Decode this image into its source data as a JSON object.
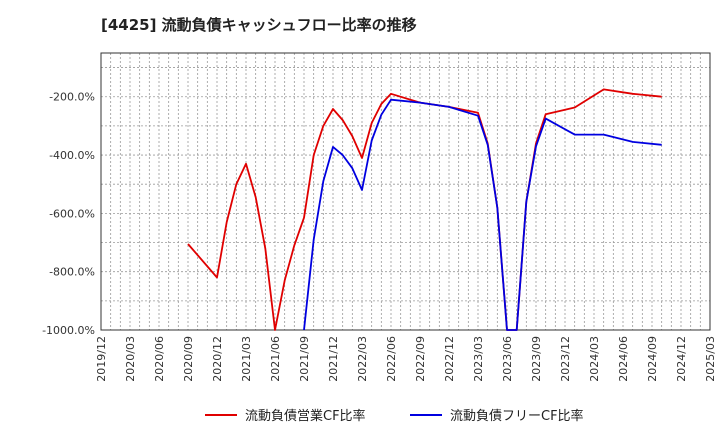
{
  "chart_data": {
    "type": "line",
    "title": "[4425]  流動負債キャッシュフロー比率の推移",
    "xlabel": "",
    "ylabel": "",
    "ylim": [
      -1000,
      -50
    ],
    "yticks": [
      -200,
      -400,
      -600,
      -800,
      -1000
    ],
    "ytick_labels": [
      "-200.0%",
      "-400.0%",
      "-600.0%",
      "-800.0%",
      "-1000.0%"
    ],
    "xtick_labels": [
      "2019/12",
      "2020/03",
      "2020/06",
      "2020/09",
      "2020/12",
      "2021/03",
      "2021/06",
      "2021/09",
      "2021/12",
      "2022/03",
      "2022/06",
      "2022/09",
      "2022/12",
      "2023/03",
      "2023/06",
      "2023/09",
      "2023/12",
      "2024/03",
      "2024/06",
      "2024/09",
      "2024/12",
      "2025/03"
    ],
    "x_start": "2019/12",
    "grid": true,
    "legend_position": "bottom",
    "series": [
      {
        "name": "流動負債営業CF比率",
        "color": "#e00000",
        "points": [
          {
            "m": 9,
            "v": -705
          },
          {
            "m": 12,
            "v": -820
          },
          {
            "m": 13,
            "v": -630
          },
          {
            "m": 14,
            "v": -500
          },
          {
            "m": 15,
            "v": -430
          },
          {
            "m": 16,
            "v": -545
          },
          {
            "m": 17,
            "v": -720
          },
          {
            "m": 18,
            "v": -1010
          },
          {
            "m": 19,
            "v": -830
          },
          {
            "m": 20,
            "v": -710
          },
          {
            "m": 21,
            "v": -615
          },
          {
            "m": 22,
            "v": -400
          },
          {
            "m": 23,
            "v": -300
          },
          {
            "m": 24,
            "v": -242
          },
          {
            "m": 25,
            "v": -280
          },
          {
            "m": 26,
            "v": -335
          },
          {
            "m": 27,
            "v": -410
          },
          {
            "m": 28,
            "v": -290
          },
          {
            "m": 29,
            "v": -225
          },
          {
            "m": 30,
            "v": -190
          },
          {
            "m": 33,
            "v": -220
          },
          {
            "m": 36,
            "v": -235
          },
          {
            "m": 39,
            "v": -255
          },
          {
            "m": 40,
            "v": -360
          },
          {
            "m": 41,
            "v": -580
          },
          {
            "m": 42,
            "v": -1010
          },
          {
            "m": 43,
            "v": -1010
          },
          {
            "m": 44,
            "v": -560
          },
          {
            "m": 45,
            "v": -360
          },
          {
            "m": 46,
            "v": -260
          },
          {
            "m": 49,
            "v": -237
          },
          {
            "m": 52,
            "v": -175
          },
          {
            "m": 55,
            "v": -190
          },
          {
            "m": 58,
            "v": -200
          }
        ]
      },
      {
        "name": "流動負債フリーCF比率",
        "color": "#0000e0",
        "points": [
          {
            "m": 21,
            "v": -1010
          },
          {
            "m": 22,
            "v": -690
          },
          {
            "m": 23,
            "v": -490
          },
          {
            "m": 24,
            "v": -372
          },
          {
            "m": 25,
            "v": -400
          },
          {
            "m": 26,
            "v": -445
          },
          {
            "m": 27,
            "v": -520
          },
          {
            "m": 28,
            "v": -350
          },
          {
            "m": 29,
            "v": -262
          },
          {
            "m": 30,
            "v": -210
          },
          {
            "m": 33,
            "v": -220
          },
          {
            "m": 36,
            "v": -235
          },
          {
            "m": 39,
            "v": -265
          },
          {
            "m": 40,
            "v": -365
          },
          {
            "m": 41,
            "v": -580
          },
          {
            "m": 42,
            "v": -1010
          },
          {
            "m": 43,
            "v": -1010
          },
          {
            "m": 44,
            "v": -560
          },
          {
            "m": 45,
            "v": -370
          },
          {
            "m": 46,
            "v": -275
          },
          {
            "m": 49,
            "v": -330
          },
          {
            "m": 52,
            "v": -330
          },
          {
            "m": 55,
            "v": -355
          },
          {
            "m": 58,
            "v": -365
          }
        ]
      }
    ]
  }
}
